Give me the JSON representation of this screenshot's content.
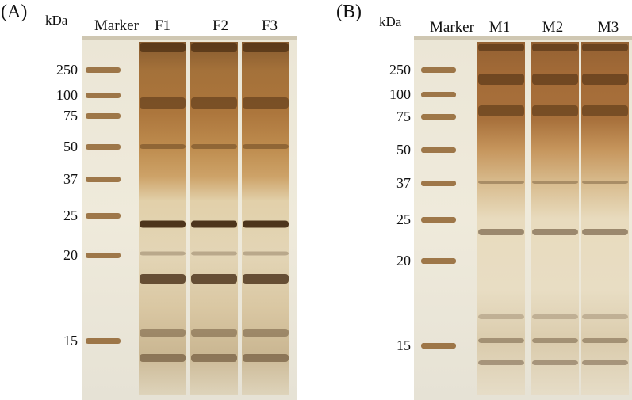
{
  "panels": [
    {
      "label": "(A)",
      "unit": "kDa",
      "lanes": [
        "Marker",
        "F1",
        "F2",
        "F3"
      ],
      "marker_sizes": [
        "250",
        "100",
        "75",
        "50",
        "37",
        "25",
        "20",
        "15"
      ]
    },
    {
      "label": "(B)",
      "unit": "kDa",
      "lanes": [
        "Marker",
        "M1",
        "M2",
        "M3"
      ],
      "marker_sizes": [
        "250",
        "100",
        "75",
        "50",
        "37",
        "25",
        "20",
        "15"
      ]
    }
  ]
}
